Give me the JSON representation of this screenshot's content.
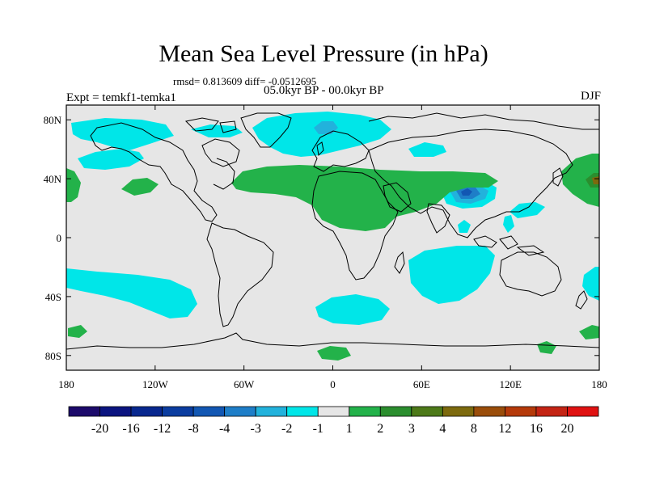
{
  "title": "Mean Sea Level Pressure (in hPa)",
  "stats": "rmsd= 0.813609 diff= -0.0512695",
  "experiment": "Expt = temkf1-temka1",
  "period": "05.0kyr BP - 00.0kyr BP",
  "season": "DJF",
  "axes": {
    "lon_ticks": [
      {
        "label": "180",
        "lon": -180
      },
      {
        "label": "120W",
        "lon": -120
      },
      {
        "label": "60W",
        "lon": -60
      },
      {
        "label": "0",
        "lon": 0
      },
      {
        "label": "60E",
        "lon": 60
      },
      {
        "label": "120E",
        "lon": 120
      },
      {
        "label": "180",
        "lon": 180
      }
    ],
    "lat_ticks": [
      {
        "label": "80N",
        "lat": 80
      },
      {
        "label": "40N",
        "lat": 40
      },
      {
        "label": "0",
        "lat": 0
      },
      {
        "label": "40S",
        "lat": -40
      },
      {
        "label": "80S",
        "lat": -80
      }
    ],
    "lon_range": [
      -180,
      180
    ],
    "lat_range": [
      -90,
      90
    ]
  },
  "colorbar": {
    "labels": [
      "-20",
      "-16",
      "-12",
      "-8",
      "-4",
      "-3",
      "-2",
      "-1",
      "1",
      "2",
      "3",
      "4",
      "8",
      "12",
      "16",
      "20"
    ],
    "colors": [
      "#1c0a6b",
      "#0b1480",
      "#08288f",
      "#0b3da0",
      "#1257b3",
      "#1e7ec8",
      "#22b2dc",
      "#00e6e8",
      "#e6e6e6",
      "#23b24a",
      "#2b8e2e",
      "#4d7a19",
      "#7d6a0e",
      "#9a4d0a",
      "#b53a0a",
      "#c42414",
      "#e01212"
    ]
  },
  "colors": {
    "neutral": "#e6e6e6",
    "neg1": "#00e6e8",
    "neg2": "#22b2dc",
    "neg3": "#1e7ec8",
    "neg4": "#1257b3",
    "pos1": "#23b24a",
    "pos2": "#2b8e2e",
    "pos3": "#7d6a0e"
  }
}
